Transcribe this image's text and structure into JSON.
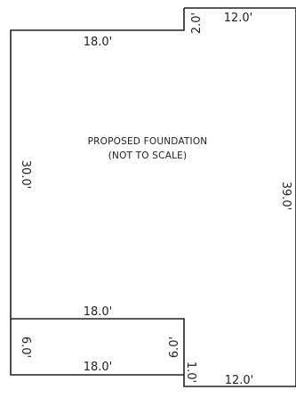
{
  "drawing": {
    "title_line1": "PROPOSED FOUNDATION",
    "title_line2": "(NOT TO SCALE)",
    "line_color": "#222222",
    "dimensions": {
      "top_right_width": "12.0'",
      "top_step": "2.0'",
      "top_left_width": "18.0'",
      "left_height": "30.0'",
      "right_height": "39.0'",
      "inner_width": "18.0'",
      "lower_left_height": "6.0'",
      "lower_inner_height": "6.0'",
      "lower_width": "18.0'",
      "bottom_step": "1.0'",
      "bottom_right_width": "12.0'"
    }
  }
}
